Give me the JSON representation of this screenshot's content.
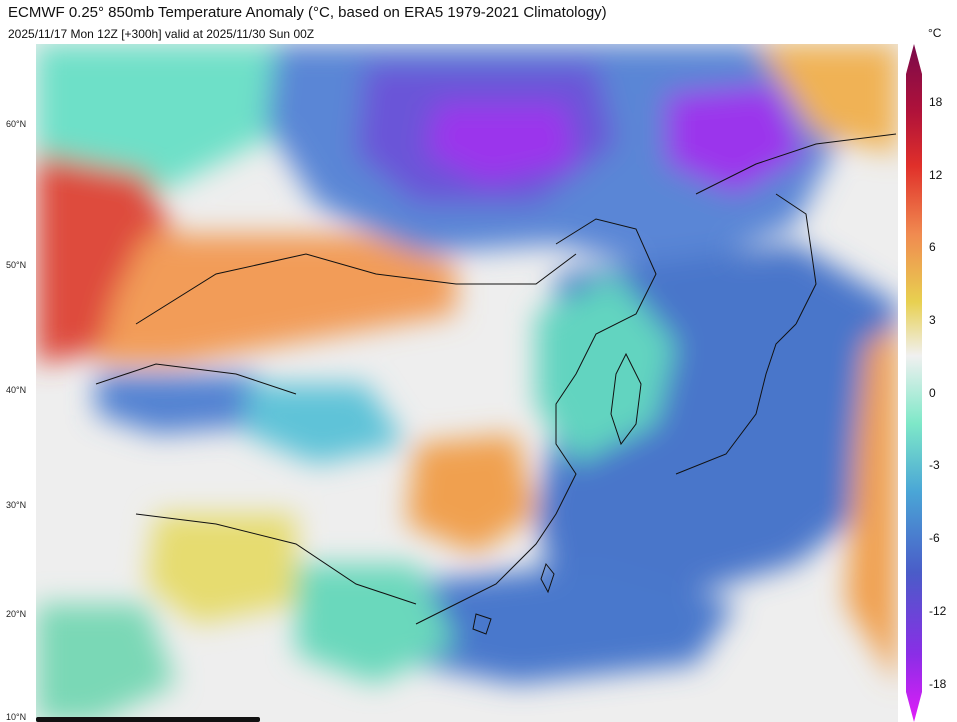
{
  "header": {
    "title": "ECMWF 0.25° 850mb Temperature Anomaly (°C, based on ERA5 1979-2021 Climatology)",
    "subtitle": "2025/11/17 Mon 12Z [+300h] valid at 2025/11/30 Sun 00Z"
  },
  "map": {
    "lat_labels": [
      "60°N",
      "50°N",
      "40°N",
      "30°N",
      "20°N",
      "10°N"
    ]
  },
  "colorbar": {
    "unit": "°C",
    "tick_labels": [
      "18",
      "12",
      "6",
      "3",
      "0",
      "-3",
      "-6",
      "-12",
      "-18"
    ]
  },
  "colors": {
    "neutral": "#eeeeee",
    "cold": "#3d6fc0",
    "very_cold": "#a21df0",
    "warm": "#f0a050",
    "hot": "#dc3c3c"
  }
}
